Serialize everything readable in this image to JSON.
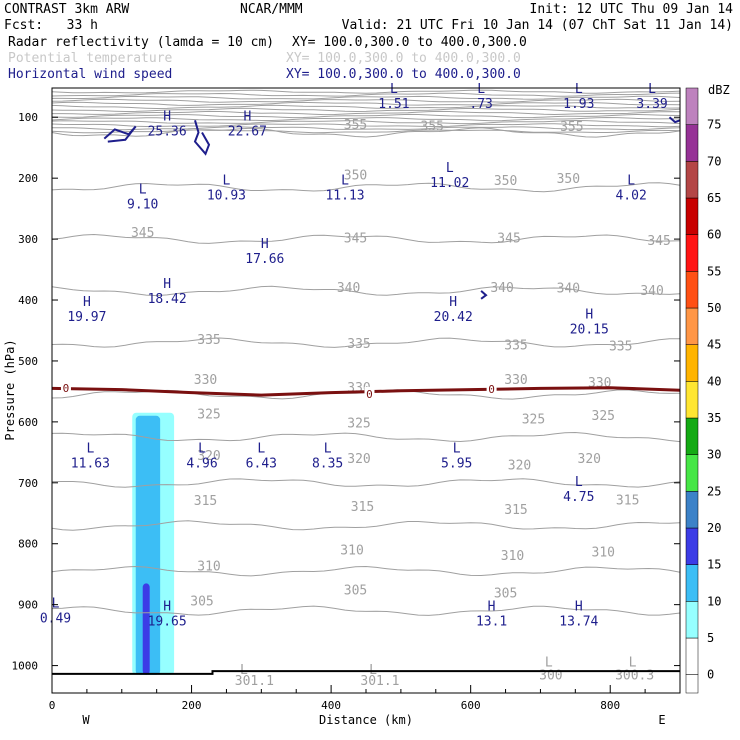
{
  "header": {
    "left_line1": "CONTRAST  3km ARW",
    "center_line1": "NCAR/MMM",
    "right_line1": "Init: 12 UTC Thu 09 Jan 14",
    "left_line2": "Fcst:   33 h",
    "right_line2": "Valid: 21 UTC Fri 10 Jan 14 (07 ChT Sat 11 Jan 14)"
  },
  "legend": {
    "fields": [
      {
        "name": "Radar reflectivity (lamda = 10 cm)",
        "xy": "XY= 100.0,300.0 to 400.0,300.0",
        "color": "#000000"
      },
      {
        "name": "Potential temperature",
        "xy": "XY= 100.0,300.0 to 400.0,300.0",
        "color": "#c8c8c8"
      },
      {
        "name": "Horizontal wind speed",
        "xy": "XY= 100.0,300.0 to 400.0,300.0",
        "color": "#1e1e8c"
      }
    ]
  },
  "colors": {
    "theta": "#a0a0a0",
    "wind": "#1e1e8c",
    "zero_line": "#7a1010",
    "ground": "#000000"
  },
  "chart_data": {
    "type": "cross-section",
    "xlabel": "Distance (km)",
    "ylabel": "Pressure (hPa)",
    "xlim": [
      0,
      900
    ],
    "ylim": [
      1050,
      50
    ],
    "xticks": [
      0,
      200,
      400,
      600,
      800
    ],
    "yticks": [
      100,
      200,
      300,
      400,
      500,
      600,
      700,
      800,
      900,
      1000
    ],
    "direction_labels": {
      "west": "W",
      "east": "E"
    },
    "colorbar": {
      "unit": "dBZ",
      "levels": [
        0,
        5,
        10,
        15,
        20,
        25,
        30,
        35,
        40,
        45,
        50,
        55,
        60,
        65,
        70,
        75
      ],
      "colors": [
        "#ffffff",
        "#96ffff",
        "#3cbef5",
        "#3c3ce6",
        "#3c82c8",
        "#46e646",
        "#14aa14",
        "#ffe632",
        "#ffb400",
        "#ff9646",
        "#ff5014",
        "#ff1414",
        "#c80000",
        "#b44646",
        "#963296",
        "#be82be"
      ]
    },
    "theta_contours": [
      {
        "value": 355,
        "p": 125
      },
      {
        "value": 350,
        "p": 215
      },
      {
        "value": 345,
        "p": 300
      },
      {
        "value": 340,
        "p": 385
      },
      {
        "value": 335,
        "p": 470
      },
      {
        "value": 330,
        "p": 555
      },
      {
        "value": 325,
        "p": 625
      },
      {
        "value": 320,
        "p": 700
      },
      {
        "value": 315,
        "p": 770
      },
      {
        "value": 310,
        "p": 845
      },
      {
        "value": 305,
        "p": 910
      }
    ],
    "theta_labels": [
      {
        "text": "355",
        "x": 435,
        "p": 113
      },
      {
        "text": "355",
        "x": 545,
        "p": 115
      },
      {
        "text": "355",
        "x": 745,
        "p": 116
      },
      {
        "text": "350",
        "x": 435,
        "p": 196
      },
      {
        "text": "350",
        "x": 650,
        "p": 205
      },
      {
        "text": "350",
        "x": 740,
        "p": 201
      },
      {
        "text": "345",
        "x": 130,
        "p": 290
      },
      {
        "text": "345",
        "x": 435,
        "p": 299
      },
      {
        "text": "345",
        "x": 655,
        "p": 299
      },
      {
        "text": "345",
        "x": 870,
        "p": 303
      },
      {
        "text": "340",
        "x": 425,
        "p": 380
      },
      {
        "text": "340",
        "x": 645,
        "p": 380
      },
      {
        "text": "340",
        "x": 740,
        "p": 381
      },
      {
        "text": "340",
        "x": 860,
        "p": 385
      },
      {
        "text": "335",
        "x": 225,
        "p": 466
      },
      {
        "text": "335",
        "x": 440,
        "p": 472
      },
      {
        "text": "335",
        "x": 665,
        "p": 475
      },
      {
        "text": "335",
        "x": 815,
        "p": 476
      },
      {
        "text": "330",
        "x": 220,
        "p": 531
      },
      {
        "text": "330",
        "x": 440,
        "p": 544
      },
      {
        "text": "330",
        "x": 665,
        "p": 531
      },
      {
        "text": "330",
        "x": 785,
        "p": 536
      },
      {
        "text": "325",
        "x": 225,
        "p": 588
      },
      {
        "text": "325",
        "x": 440,
        "p": 603
      },
      {
        "text": "325",
        "x": 690,
        "p": 596
      },
      {
        "text": "325",
        "x": 790,
        "p": 590
      },
      {
        "text": "320",
        "x": 225,
        "p": 656
      },
      {
        "text": "320",
        "x": 440,
        "p": 661
      },
      {
        "text": "320",
        "x": 670,
        "p": 672
      },
      {
        "text": "320",
        "x": 770,
        "p": 661
      },
      {
        "text": "315",
        "x": 220,
        "p": 730
      },
      {
        "text": "315",
        "x": 445,
        "p": 740
      },
      {
        "text": "315",
        "x": 665,
        "p": 745
      },
      {
        "text": "315",
        "x": 825,
        "p": 729
      },
      {
        "text": "310",
        "x": 430,
        "p": 811
      },
      {
        "text": "310",
        "x": 660,
        "p": 820
      },
      {
        "text": "310",
        "x": 790,
        "p": 814
      },
      {
        "text": "310",
        "x": 225,
        "p": 837
      },
      {
        "text": "305",
        "x": 215,
        "p": 895
      },
      {
        "text": "305",
        "x": 435,
        "p": 877
      },
      {
        "text": "305",
        "x": 650,
        "p": 882
      },
      {
        "text": "301.1",
        "x": 290,
        "p": 1025
      },
      {
        "text": "301.1",
        "x": 470,
        "p": 1025
      },
      {
        "text": "300",
        "x": 715,
        "p": 1016
      },
      {
        "text": "300.3",
        "x": 835,
        "p": 1016
      }
    ],
    "theta_extrema": [
      {
        "type": "L",
        "value": "301.1",
        "x": 275,
        "p": 1007
      },
      {
        "type": "L",
        "value": "301.1",
        "x": 460,
        "p": 1007
      },
      {
        "type": "L",
        "value": "300",
        "x": 712,
        "p": 995
      },
      {
        "type": "L",
        "value": "300.3",
        "x": 832,
        "p": 995
      }
    ],
    "zero_dbz_line": [
      [
        0,
        545
      ],
      [
        100,
        547
      ],
      [
        200,
        552
      ],
      [
        300,
        556
      ],
      [
        400,
        552
      ],
      [
        500,
        549
      ],
      [
        600,
        547
      ],
      [
        700,
        545
      ],
      [
        800,
        544
      ],
      [
        900,
        548
      ]
    ],
    "zero_labels": [
      {
        "text": "0",
        "x": 20,
        "p": 544
      },
      {
        "text": "0",
        "x": 455,
        "p": 554
      },
      {
        "text": "0",
        "x": 630,
        "p": 546
      }
    ],
    "reflectivity_column": {
      "outer_5dbz": {
        "x_range": [
          115,
          175
        ],
        "p_range": [
          585,
          1015
        ]
      },
      "inner_10dbz": {
        "x_range": [
          120,
          155
        ],
        "p_range": [
          590,
          1015
        ]
      },
      "core_15dbz": {
        "x_range": [
          130,
          140
        ],
        "p_range": [
          865,
          1015
        ]
      }
    },
    "wind_extrema": [
      {
        "type": "L",
        "value": "1.51",
        "x": 490,
        "p": 60
      },
      {
        "type": "L",
        "value": ".73",
        "x": 615,
        "p": 60
      },
      {
        "type": "L",
        "value": "1.93",
        "x": 755,
        "p": 60
      },
      {
        "type": "L",
        "value": "3.39",
        "x": 860,
        "p": 60
      },
      {
        "type": "H",
        "value": "25.36",
        "x": 165,
        "p": 105
      },
      {
        "type": "H",
        "value": "22.67",
        "x": 280,
        "p": 105
      },
      {
        "type": "L",
        "value": "9.10",
        "x": 130,
        "p": 225
      },
      {
        "type": "L",
        "value": "10.93",
        "x": 250,
        "p": 210
      },
      {
        "type": "L",
        "value": "11.13",
        "x": 420,
        "p": 210
      },
      {
        "type": "L",
        "value": "11.02",
        "x": 570,
        "p": 190
      },
      {
        "type": "L",
        "value": "4.02",
        "x": 830,
        "p": 210
      },
      {
        "type": "H",
        "value": "17.66",
        "x": 305,
        "p": 315
      },
      {
        "type": "H",
        "value": "18.42",
        "x": 165,
        "p": 380
      },
      {
        "type": "H",
        "value": "19.97",
        "x": 50,
        "p": 410
      },
      {
        "type": "H",
        "value": "20.42",
        "x": 575,
        "p": 410
      },
      {
        "type": "H",
        "value": "20.15",
        "x": 770,
        "p": 430
      },
      {
        "type": "L",
        "value": "11.63",
        "x": 55,
        "p": 650
      },
      {
        "type": "L",
        "value": "4.96",
        "x": 215,
        "p": 650
      },
      {
        "type": "L",
        "value": "6.43",
        "x": 300,
        "p": 650
      },
      {
        "type": "L",
        "value": "8.35",
        "x": 395,
        "p": 650
      },
      {
        "type": "L",
        "value": "5.95",
        "x": 580,
        "p": 650
      },
      {
        "type": "L",
        "value": "4.75",
        "x": 755,
        "p": 705
      },
      {
        "type": "L",
        "value": "0.49",
        "x": 5,
        "p": 905
      },
      {
        "type": "H",
        "value": "19.65",
        "x": 165,
        "p": 910
      },
      {
        "type": "H",
        "value": "13.1",
        "x": 630,
        "p": 910
      },
      {
        "type": "H",
        "value": "13.74",
        "x": 755,
        "p": 910
      }
    ],
    "wind_contours": [
      [
        [
          75,
          135
        ],
        [
          90,
          120
        ],
        [
          110,
          128
        ],
        [
          120,
          115
        ],
        [
          105,
          137
        ],
        [
          80,
          140
        ]
      ],
      [
        [
          205,
          105
        ],
        [
          210,
          125
        ],
        [
          205,
          140
        ],
        [
          220,
          160
        ],
        [
          225,
          145
        ],
        [
          215,
          125
        ]
      ],
      [
        [
          885,
          100
        ],
        [
          893,
          108
        ],
        [
          900,
          105
        ]
      ],
      [
        [
          615,
          385
        ],
        [
          622,
          392
        ],
        [
          615,
          398
        ]
      ]
    ]
  }
}
